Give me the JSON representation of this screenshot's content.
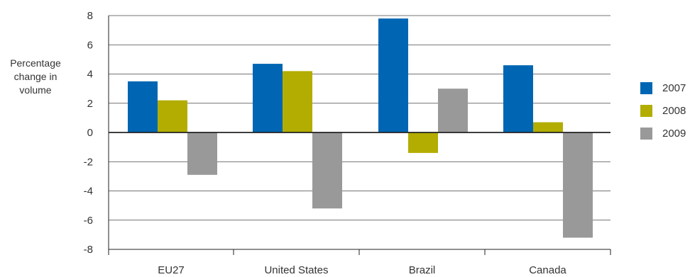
{
  "chart_data": {
    "type": "bar",
    "categories": [
      "EU27",
      "United States",
      "Brazil",
      "Canada"
    ],
    "series": [
      {
        "name": "2007",
        "color": "#0066b3",
        "values": [
          3.5,
          4.7,
          7.8,
          4.6
        ]
      },
      {
        "name": "2008",
        "color": "#b2ad00",
        "values": [
          2.2,
          4.2,
          -1.4,
          0.7
        ]
      },
      {
        "name": "2009",
        "color": "#999999",
        "values": [
          -2.9,
          -5.2,
          3.0,
          -7.2
        ]
      }
    ],
    "ylabel": "Percentage change in volume",
    "ylim": [
      -8,
      8
    ],
    "yticks": [
      "8",
      "6",
      "4",
      "2",
      "0",
      "-2",
      "-4",
      "-6",
      "-8"
    ],
    "grid": true,
    "legend_position": "right"
  }
}
